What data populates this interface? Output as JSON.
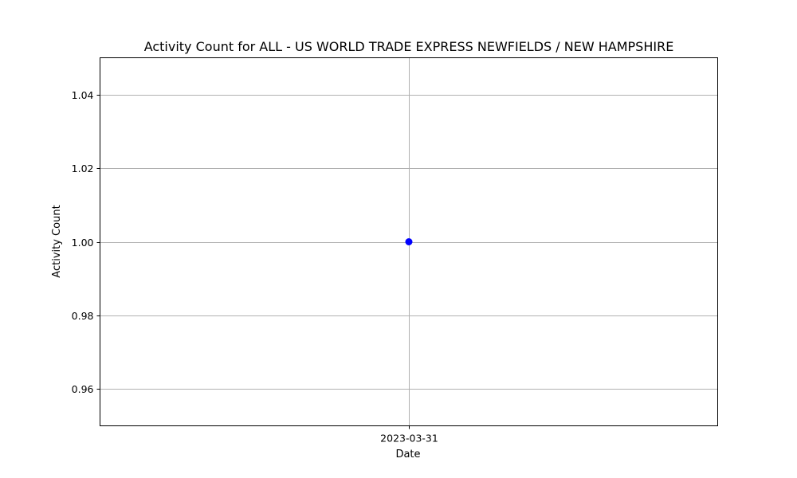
{
  "chart_data": {
    "type": "line",
    "title": "Activity Count for ALL - US WORLD TRADE EXPRESS NEWFIELDS / NEW HAMPSHIRE",
    "xlabel": "Date",
    "ylabel": "Activity Count",
    "categories": [
      "2023-03-31"
    ],
    "series": [
      {
        "name": "Activity Count",
        "values": [
          1
        ],
        "color": "#0000ff",
        "marker": "circle"
      }
    ],
    "ylim": [
      0.95,
      1.05
    ],
    "yticks": [
      0.96,
      0.98,
      1.0,
      1.02,
      1.04
    ],
    "ytick_labels": [
      "0.96",
      "0.98",
      "1.00",
      "1.02",
      "1.04"
    ],
    "grid": true,
    "grid_color": "#b0b0b0"
  }
}
